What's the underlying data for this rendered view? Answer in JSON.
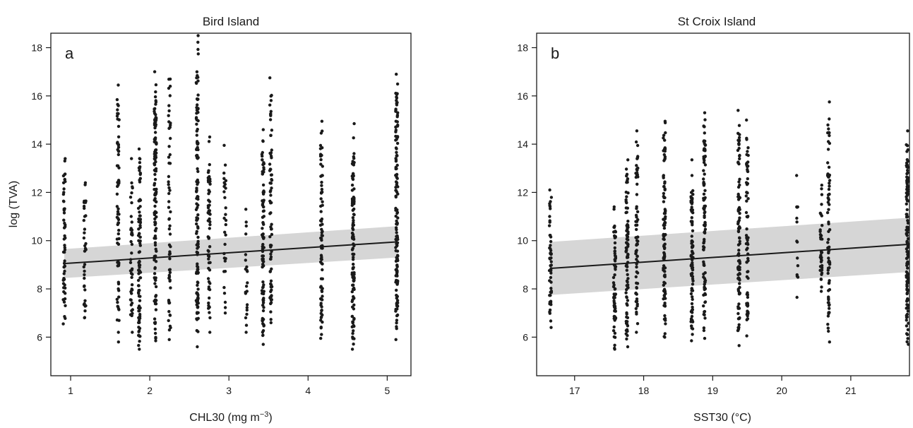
{
  "chart_data": [
    {
      "type": "scatter",
      "title": "Bird Island",
      "panel_label": "a",
      "xlabel": "CHL30 (mg m",
      "xlabel_sup": "−3",
      "xlabel_end": ")",
      "ylabel": "log (TVA)",
      "xlim": [
        0.75,
        5.3
      ],
      "ylim": [
        4.4,
        18.6
      ],
      "xticks": [
        1,
        2,
        3,
        4,
        5
      ],
      "yticks": [
        6,
        8,
        10,
        12,
        14,
        16,
        18
      ],
      "grid": false,
      "fit": {
        "x": [
          0.92,
          5.12
        ],
        "y": [
          9.05,
          9.95
        ]
      },
      "ci_band": {
        "x": [
          0.92,
          5.12
        ],
        "lower": [
          8.45,
          9.3
        ],
        "upper": [
          9.65,
          10.6
        ]
      },
      "point_columns": [
        {
          "x": 0.92,
          "ymin": 6.55,
          "ymax": 13.4,
          "n": 55
        },
        {
          "x": 1.18,
          "ymin": 6.8,
          "ymax": 12.4,
          "n": 35
        },
        {
          "x": 1.6,
          "ymin": 5.8,
          "ymax": 16.45,
          "n": 70
        },
        {
          "x": 1.77,
          "ymin": 6.2,
          "ymax": 13.4,
          "n": 45
        },
        {
          "x": 1.87,
          "ymin": 5.5,
          "ymax": 13.8,
          "n": 95
        },
        {
          "x": 2.07,
          "ymin": 5.85,
          "ymax": 17.0,
          "n": 130
        },
        {
          "x": 2.25,
          "ymin": 5.9,
          "ymax": 16.7,
          "n": 60
        },
        {
          "x": 2.6,
          "ymin": 5.6,
          "ymax": 18.5,
          "n": 130
        },
        {
          "x": 2.75,
          "ymin": 6.2,
          "ymax": 14.3,
          "n": 60
        },
        {
          "x": 2.95,
          "ymin": 7.0,
          "ymax": 13.95,
          "n": 30
        },
        {
          "x": 3.22,
          "ymin": 6.2,
          "ymax": 11.3,
          "n": 22
        },
        {
          "x": 3.43,
          "ymin": 5.7,
          "ymax": 14.6,
          "n": 90
        },
        {
          "x": 3.53,
          "ymin": 6.6,
          "ymax": 16.75,
          "n": 75
        },
        {
          "x": 4.17,
          "ymin": 5.95,
          "ymax": 14.95,
          "n": 80
        },
        {
          "x": 4.57,
          "ymin": 5.5,
          "ymax": 14.85,
          "n": 110
        },
        {
          "x": 5.12,
          "ymin": 5.9,
          "ymax": 16.9,
          "n": 140
        }
      ]
    },
    {
      "type": "scatter",
      "title": "St Croix Island",
      "panel_label": "b",
      "xlabel": "SST30 (°C)",
      "xlabel_sup": "",
      "xlabel_end": "",
      "ylabel": "",
      "xlim": [
        16.45,
        21.85
      ],
      "ylim": [
        4.4,
        18.6
      ],
      "xticks": [
        17,
        18,
        19,
        20,
        21
      ],
      "yticks": [
        6,
        8,
        10,
        12,
        14,
        16,
        18
      ],
      "grid": false,
      "fit": {
        "x": [
          16.65,
          21.85
        ],
        "y": [
          8.85,
          9.85
        ]
      },
      "ci_band": {
        "x": [
          16.65,
          21.85
        ],
        "lower": [
          7.75,
          8.7
        ],
        "upper": [
          9.95,
          10.95
        ]
      },
      "point_columns": [
        {
          "x": 16.65,
          "ymin": 6.4,
          "ymax": 12.1,
          "n": 55
        },
        {
          "x": 17.58,
          "ymin": 5.5,
          "ymax": 11.4,
          "n": 70
        },
        {
          "x": 17.76,
          "ymin": 5.6,
          "ymax": 13.35,
          "n": 85
        },
        {
          "x": 17.9,
          "ymin": 6.2,
          "ymax": 14.55,
          "n": 70
        },
        {
          "x": 18.3,
          "ymin": 6.0,
          "ymax": 14.95,
          "n": 100
        },
        {
          "x": 18.7,
          "ymin": 5.85,
          "ymax": 13.35,
          "n": 90
        },
        {
          "x": 18.88,
          "ymin": 5.95,
          "ymax": 15.3,
          "n": 100
        },
        {
          "x": 19.38,
          "ymin": 5.65,
          "ymax": 15.4,
          "n": 100
        },
        {
          "x": 19.5,
          "ymin": 6.05,
          "ymax": 15.0,
          "n": 70
        },
        {
          "x": 20.23,
          "ymin": 7.65,
          "ymax": 12.7,
          "n": 14
        },
        {
          "x": 20.57,
          "ymin": 7.9,
          "ymax": 12.3,
          "n": 35
        },
        {
          "x": 20.68,
          "ymin": 5.8,
          "ymax": 15.75,
          "n": 75
        },
        {
          "x": 21.82,
          "ymin": 5.7,
          "ymax": 14.55,
          "n": 130
        }
      ]
    }
  ]
}
